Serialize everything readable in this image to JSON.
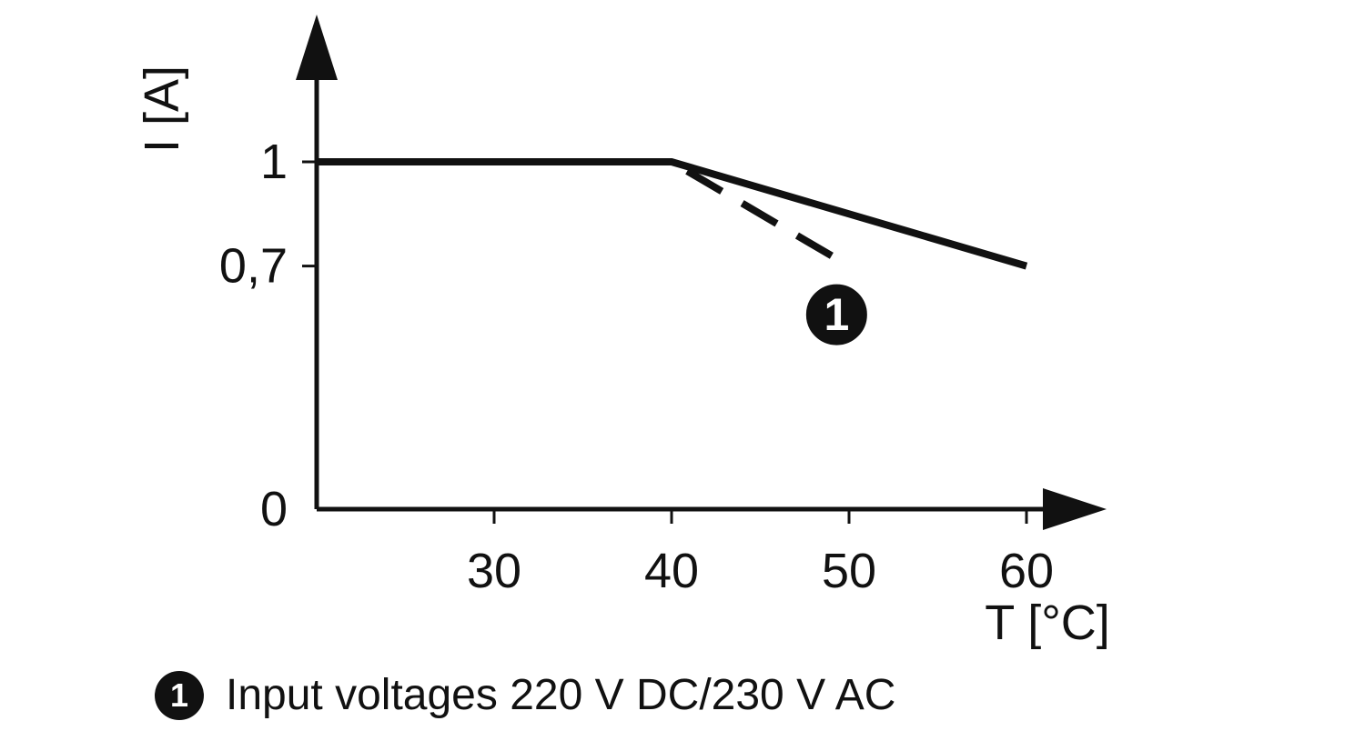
{
  "colors": {
    "line": "#111111",
    "text": "#111111",
    "callout_bg": "#111111",
    "callout_fg": "#ffffff",
    "background": "#ffffff"
  },
  "chart_data": {
    "type": "line",
    "title": "",
    "xlabel": "T [°C]",
    "ylabel": "I [A]",
    "xlim": [
      20,
      65
    ],
    "ylim": [
      0,
      1.35
    ],
    "grid": false,
    "legend_position": "below",
    "x_ticks": [
      {
        "value": 30,
        "label": "30"
      },
      {
        "value": 40,
        "label": "40"
      },
      {
        "value": 50,
        "label": "50"
      },
      {
        "value": 60,
        "label": "60"
      }
    ],
    "y_ticks": [
      {
        "value": 1,
        "label": "1"
      },
      {
        "value": 0.7,
        "label": "0,7"
      },
      {
        "value": 0,
        "label": "0"
      }
    ],
    "series": [
      {
        "style": "solid",
        "points": [
          [
            20,
            1
          ],
          [
            40,
            1
          ],
          [
            60,
            0.7
          ]
        ]
      },
      {
        "style": "dashed",
        "callout": "1",
        "points": [
          [
            40,
            1
          ],
          [
            50,
            0.7
          ]
        ]
      }
    ],
    "annotation": {
      "label": "1",
      "x": 49.3,
      "y": 0.56
    }
  },
  "legend": {
    "marker": "1",
    "text": "Input voltages 220 V DC/230 V AC"
  }
}
